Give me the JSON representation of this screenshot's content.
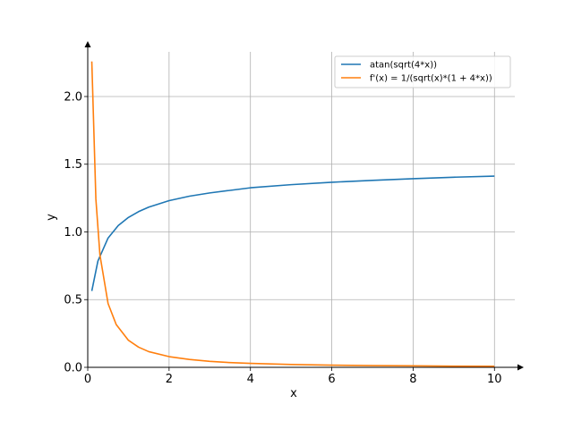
{
  "chart_data": {
    "type": "line",
    "title": "",
    "xlabel": "x",
    "ylabel": "y",
    "xlim": [
      0,
      10.5
    ],
    "ylim": [
      0,
      2.33
    ],
    "xticks": [
      0,
      2,
      4,
      6,
      8,
      10
    ],
    "yticks": [
      0.0,
      0.5,
      1.0,
      1.5,
      2.0
    ],
    "xtick_labels": [
      "0",
      "2",
      "4",
      "6",
      "8",
      "10"
    ],
    "ytick_labels": [
      "0.0",
      "0.5",
      "1.0",
      "1.5",
      "2.0"
    ],
    "grid": true,
    "legend": "top-right",
    "series": [
      {
        "name": "atan(sqrt(4*x))",
        "color": "#1f77b4",
        "x": [
          0.1,
          0.25,
          0.5,
          0.75,
          1,
          1.25,
          1.5,
          2,
          2.5,
          3,
          3.5,
          4,
          5,
          6,
          7,
          8,
          9,
          10
        ],
        "y": [
          0.564,
          0.785,
          0.955,
          1.047,
          1.107,
          1.15,
          1.183,
          1.231,
          1.264,
          1.288,
          1.307,
          1.326,
          1.349,
          1.367,
          1.381,
          1.393,
          1.404,
          1.412
        ]
      },
      {
        "name": "f'(x) = 1/(sqrt(x)*(1 + 4*x))",
        "color": "#ff7f0e",
        "x": [
          0.1,
          0.2,
          0.3,
          0.5,
          0.7,
          1,
          1.25,
          1.5,
          2,
          2.5,
          3,
          3.5,
          4,
          5,
          6,
          7,
          8,
          9,
          10
        ],
        "y": [
          2.259,
          1.242,
          0.829,
          0.471,
          0.316,
          0.2,
          0.149,
          0.116,
          0.079,
          0.058,
          0.044,
          0.035,
          0.029,
          0.021,
          0.016,
          0.013,
          0.011,
          0.009,
          0.008
        ]
      }
    ]
  }
}
